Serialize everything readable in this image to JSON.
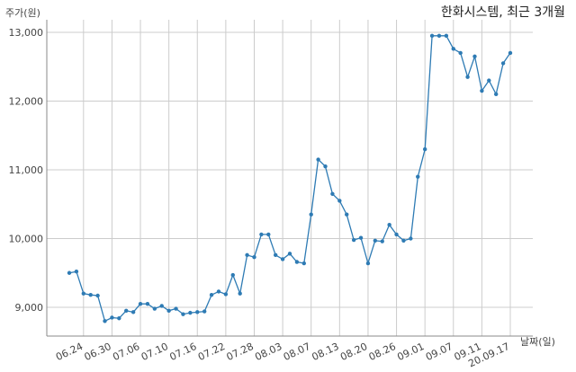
{
  "chart_data": {
    "type": "line",
    "title": "한화시스템, 최근 3개월",
    "ylabel": "주가(원)",
    "xlabel": "날짜(일)",
    "ylim": [
      8600,
      13200
    ],
    "yticks": [
      9000,
      10000,
      11000,
      12000,
      13000
    ],
    "ytick_labels": [
      "9,000",
      "10,000",
      "11,000",
      "12,000",
      "13,000"
    ],
    "xtick_labels": [
      "06.24",
      "06.30",
      "07.06",
      "07.10",
      "07.16",
      "07.22",
      "07.28",
      "08.03",
      "08.07",
      "08.13",
      "08.20",
      "08.26",
      "09.01",
      "09.07",
      "09.11",
      "20.09.17"
    ],
    "xtick_index": [
      2,
      6,
      10,
      14,
      18,
      22,
      26,
      30,
      34,
      38,
      42,
      46,
      50,
      54,
      58,
      62
    ],
    "grid": true,
    "series": [
      {
        "color": "#2e7bb4",
        "values": [
          9500,
          9520,
          9200,
          9180,
          9170,
          8800,
          8850,
          8840,
          8950,
          8930,
          9050,
          9050,
          8980,
          9020,
          8950,
          8980,
          8900,
          8920,
          8930,
          8940,
          9180,
          9230,
          9190,
          9470,
          9200,
          9760,
          9730,
          10060,
          10060,
          9760,
          9700,
          9780,
          9660,
          9640,
          10350,
          11150,
          11050,
          10650,
          10550,
          10350,
          9980,
          10010,
          9640,
          9970,
          9960,
          10200,
          10060,
          9970,
          10000,
          10900,
          11300,
          12950,
          12950,
          12950,
          12760,
          12700,
          12350,
          12650,
          12150,
          12300,
          12100,
          12550,
          12700
        ]
      }
    ]
  }
}
